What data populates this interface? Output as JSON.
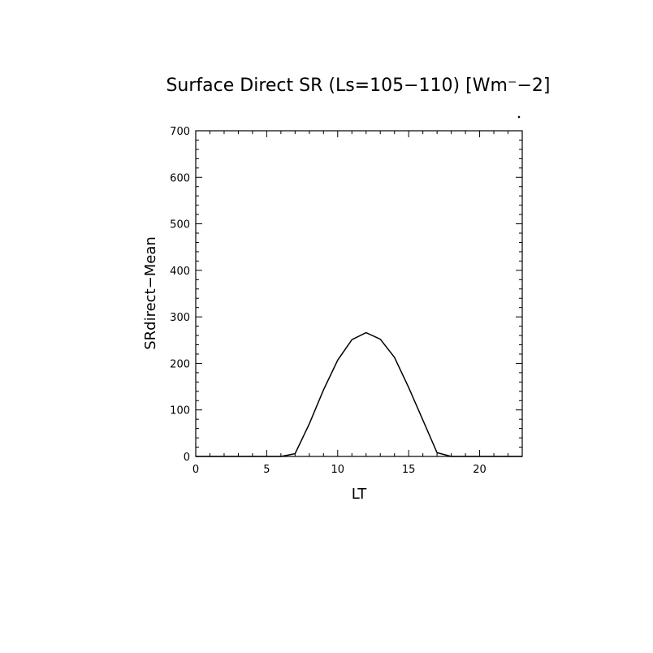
{
  "chart_data": {
    "type": "line",
    "title": "Surface Direct SR (Ls=105−110) [Wm⁻−2]",
    "xlabel": "LT",
    "ylabel": "SRdirect−Mean",
    "xlim": [
      0,
      23
    ],
    "ylim": [
      0,
      700
    ],
    "xticks": [
      0,
      5,
      10,
      15,
      20
    ],
    "yticks": [
      0,
      100,
      200,
      300,
      400,
      500,
      600,
      700
    ],
    "grid": false,
    "series": [
      {
        "x": [
          0,
          1,
          2,
          3,
          4,
          5,
          6,
          7,
          8,
          9,
          10,
          11,
          12,
          13,
          14,
          15,
          16,
          17,
          18,
          19,
          20,
          21,
          22,
          23
        ],
        "values": [
          0,
          0,
          0,
          0,
          0,
          0,
          0,
          6,
          70,
          143,
          207,
          251,
          266,
          252,
          213,
          148,
          78,
          8,
          0,
          0,
          0,
          0,
          0,
          0
        ]
      }
    ],
    "colors": {
      "line": "#000000",
      "axes": "#000000",
      "background": "#ffffff"
    }
  }
}
